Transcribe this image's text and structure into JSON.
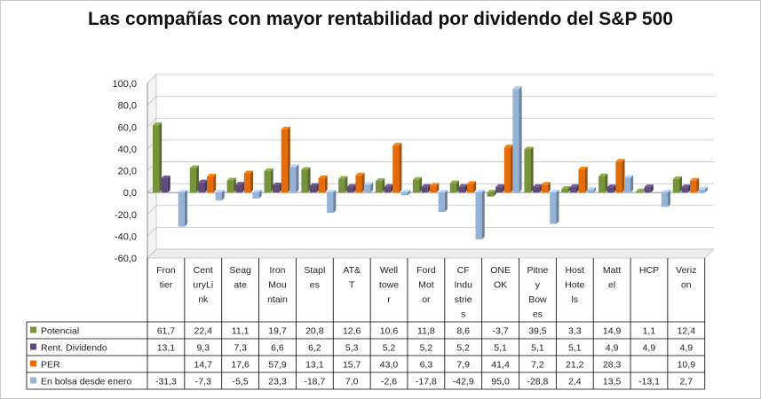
{
  "chart_data": {
    "type": "bar",
    "title": "Las compañías con mayor rentabilidad por dividendo del S&P 500",
    "xlabel": "",
    "ylabel": "",
    "ylim": [
      -60,
      100
    ],
    "yticks": [
      "100,0",
      "80,0",
      "60,0",
      "40,0",
      "20,0",
      "0,0",
      "-20,0",
      "-40,0",
      "-60,0"
    ],
    "grid": true,
    "legend": "table-left",
    "categories": [
      "Frontier",
      "CenturyLink",
      "Seagate",
      "Iron Mountain",
      "Staples",
      "AT&T",
      "Welltower",
      "Ford Motor",
      "CF Industries",
      "ONEOK",
      "Pitney Bowes",
      "Host Hotels",
      "Mattel",
      "HCP",
      "Verizon"
    ],
    "category_label_lines": [
      [
        "Fron",
        "tier"
      ],
      [
        "Cent",
        "uryLi",
        "nk"
      ],
      [
        "Seag",
        "ate"
      ],
      [
        "Iron",
        "Mou",
        "ntain"
      ],
      [
        "Stapl",
        "es"
      ],
      [
        "AT&",
        "T"
      ],
      [
        "Well",
        "towe",
        "r"
      ],
      [
        "Ford",
        "Mot",
        "or"
      ],
      [
        "CF",
        "Indu",
        "strie",
        "s"
      ],
      [
        "ONE",
        "OK"
      ],
      [
        "Pitne",
        "y",
        "Bow",
        "es"
      ],
      [
        "Host",
        "Hote",
        "ls"
      ],
      [
        "Matt",
        "el"
      ],
      [
        "HCP"
      ],
      [
        "Veriz",
        "on"
      ]
    ],
    "series": [
      {
        "name": "Potencial",
        "color": "#77933C",
        "values": [
          61.7,
          22.4,
          11.1,
          19.7,
          20.8,
          12.6,
          10.6,
          11.8,
          8.6,
          -3.7,
          39.5,
          3.3,
          14.9,
          1.1,
          12.4
        ],
        "labels": [
          "61,7",
          "22,4",
          "11,1",
          "19,7",
          "20,8",
          "12,6",
          "10,6",
          "11,8",
          "8,6",
          "-3,7",
          "39,5",
          "3,3",
          "14,9",
          "1,1",
          "12,4"
        ]
      },
      {
        "name": "Rent. Dividendo",
        "color": "#604A7B",
        "values": [
          13.1,
          9.3,
          7.3,
          6.6,
          6.2,
          5.3,
          5.2,
          5.2,
          5.2,
          5.1,
          5.1,
          5.1,
          4.9,
          4.9,
          4.9
        ],
        "labels": [
          "13,1",
          "9,3",
          "7,3",
          "6,6",
          "6,2",
          "5,3",
          "5,2",
          "5,2",
          "5,2",
          "5,1",
          "5,1",
          "5,1",
          "4,9",
          "4,9",
          "4,9"
        ]
      },
      {
        "name": "PER",
        "color": "#E46C0A",
        "values": [
          null,
          14.7,
          17.6,
          57.9,
          13.1,
          15.7,
          43.0,
          6.3,
          7.9,
          41.4,
          7.2,
          21.2,
          28.3,
          null,
          10.9
        ],
        "labels": [
          "",
          "14,7",
          "17,6",
          "57,9",
          "13,1",
          "15,7",
          "43,0",
          "6,3",
          "7,9",
          "41,4",
          "7,2",
          "21,2",
          "28,3",
          "",
          "10,9"
        ]
      },
      {
        "name": "En bolsa desde enero",
        "color": "#95B3D7",
        "values": [
          -31.3,
          -7.3,
          -5.5,
          23.3,
          -18.7,
          7.0,
          -2.6,
          -17.8,
          -42.9,
          95.0,
          -28.8,
          2.4,
          13.5,
          -13.1,
          2.7
        ],
        "labels": [
          "-31,3",
          "-7,3",
          "-5,5",
          "23,3",
          "-18,7",
          "7,0",
          "-2,6",
          "-17,8",
          "-42,9",
          "95,0",
          "-28,8",
          "2,4",
          "13,5",
          "-13,1",
          "2,7"
        ]
      }
    ]
  }
}
